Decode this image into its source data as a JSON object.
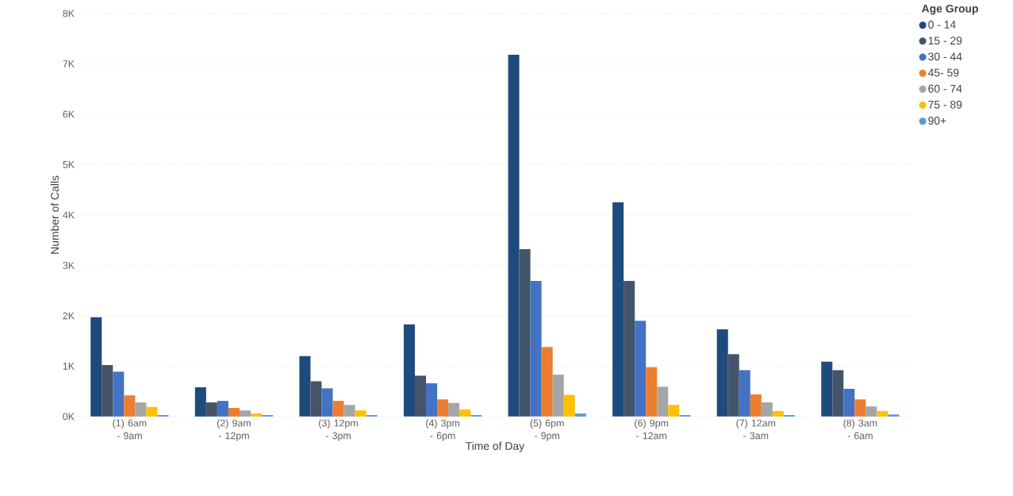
{
  "chart_data": {
    "type": "bar",
    "xlabel": "Time of Day",
    "ylabel": "Number of Calls",
    "legend_title": "Age Group",
    "categories": [
      "(1) 6am - 9am",
      "(2) 9am - 12pm",
      "(3) 12pm - 3pm",
      "(4) 3pm - 6pm",
      "(5) 6pm - 9pm",
      "(6) 9pm - 12am",
      "(7) 12am - 3am",
      "(8) 3am - 6am"
    ],
    "series": [
      {
        "name": "0 - 14",
        "color": "#1f4a7c",
        "values": [
          1970,
          580,
          1200,
          1830,
          7180,
          4250,
          1730,
          1090
        ]
      },
      {
        "name": "15 - 29",
        "color": "#44546a",
        "values": [
          1020,
          280,
          700,
          810,
          3320,
          2690,
          1240,
          920
        ]
      },
      {
        "name": "30 - 44",
        "color": "#4472c4",
        "values": [
          890,
          310,
          560,
          660,
          2690,
          1900,
          920,
          550
        ]
      },
      {
        "name": "45- 59",
        "color": "#ed7d31",
        "values": [
          420,
          170,
          310,
          340,
          1380,
          980,
          440,
          340
        ]
      },
      {
        "name": "60 - 74",
        "color": "#a5a5a5",
        "values": [
          280,
          120,
          230,
          270,
          830,
          590,
          280,
          200
        ]
      },
      {
        "name": "75 - 89",
        "color": "#ffc000",
        "values": [
          190,
          60,
          120,
          140,
          430,
          230,
          110,
          110
        ]
      },
      {
        "name": "90+",
        "color": "#5b9bd5",
        "values": [
          30,
          30,
          30,
          30,
          60,
          30,
          30,
          40
        ]
      }
    ],
    "ylim": [
      0,
      8000
    ],
    "yticks": [
      {
        "value": 0,
        "label": "0K"
      },
      {
        "value": 1000,
        "label": "1K"
      },
      {
        "value": 2000,
        "label": "2K"
      },
      {
        "value": 3000,
        "label": "3K"
      },
      {
        "value": 4000,
        "label": "4K"
      },
      {
        "value": 5000,
        "label": "5K"
      },
      {
        "value": 6000,
        "label": "6K"
      },
      {
        "value": 7000,
        "label": "7K"
      },
      {
        "value": 8000,
        "label": "8K"
      }
    ],
    "grid": "y",
    "legend": "top right"
  }
}
